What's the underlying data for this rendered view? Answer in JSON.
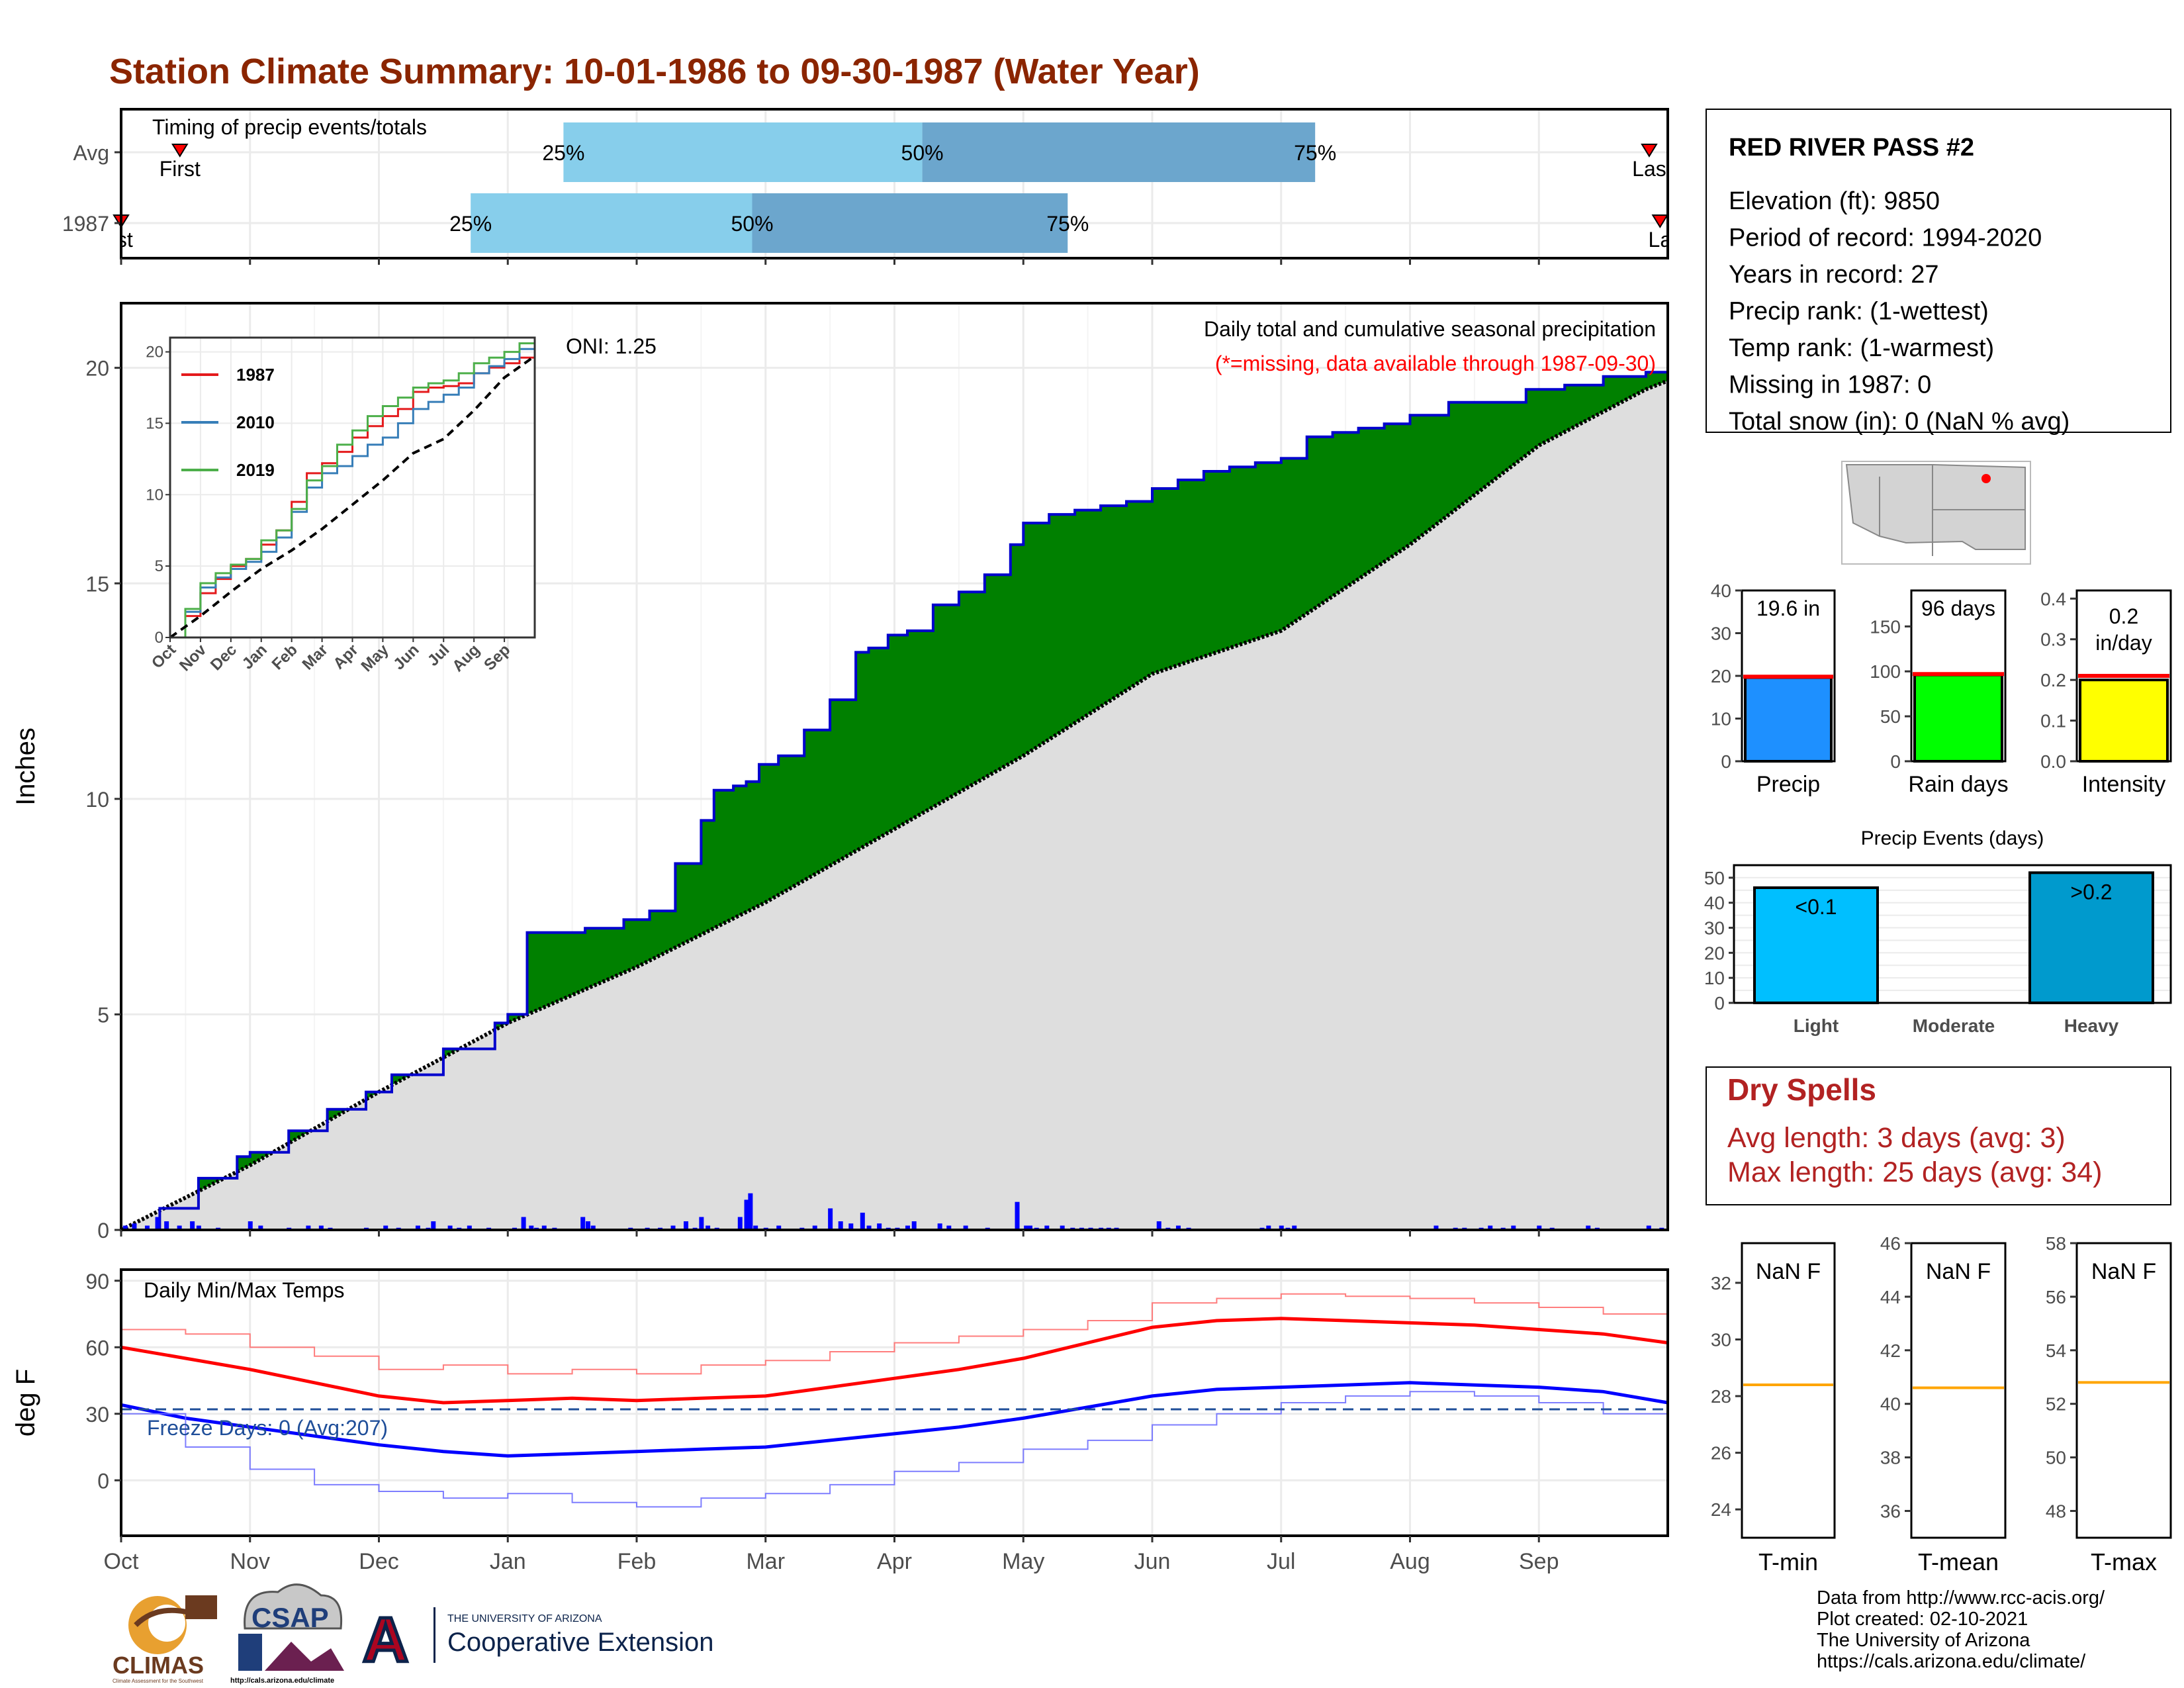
{
  "page": {
    "title": "Station Climate Summary: 10-01-1986 to 09-30-1987 (Water Year)",
    "month_labels": [
      "Oct",
      "Nov",
      "Dec",
      "Jan",
      "Feb",
      "Mar",
      "Apr",
      "May",
      "Jun",
      "Jul",
      "Aug",
      "Sep"
    ],
    "colors": {
      "title": "#8B2500",
      "precip_bar": "#0000FF",
      "green": "#008000",
      "avg_fill": "#DEDEDE",
      "q1": "#87CEEB",
      "q2": "#6CA6CD",
      "tmax": "#FF0000",
      "tmin": "#0000FF",
      "freeze": "#1F4E99",
      "dry": "#B22222",
      "mean_line": "#FFA500"
    }
  },
  "timing": {
    "label": "Timing of precip events/totals",
    "rows": [
      {
        "name": "Avg",
        "first_label": "First",
        "last_label": "Las",
        "p25": "25%",
        "p50": "50%",
        "p75": "75%",
        "first_frac": 0.038,
        "p25_frac": 0.286,
        "p50_frac": 0.518,
        "p75_frac": 0.772,
        "last_frac": 0.988
      },
      {
        "name": "1987",
        "first_label": "rst",
        "last_label": "La",
        "p25": "25%",
        "p50": "50%",
        "p75": "75%",
        "first_frac": 0.0,
        "p25_frac": 0.226,
        "p50_frac": 0.408,
        "p75_frac": 0.612,
        "last_frac": 0.995
      }
    ]
  },
  "chart_data": [
    {
      "type": "area",
      "title": "Daily total and cumulative seasonal precipitation",
      "subtitle": "(*=missing, data available through 1987-09-30)",
      "ylabel": "Inches",
      "ylim": [
        0,
        21.5
      ],
      "yticks": [
        0,
        5,
        10,
        15,
        20
      ],
      "annotation": "ONI: 1.25",
      "x_months": [
        "Oct",
        "Nov",
        "Dec",
        "Jan",
        "Feb",
        "Mar",
        "Apr",
        "May",
        "Jun",
        "Jul",
        "Aug",
        "Sep"
      ],
      "series": [
        {
          "name": "1987 cumulative",
          "x_month": [
            0,
            0.3,
            0.6,
            0.9,
            1.0,
            1.3,
            1.6,
            1.9,
            2.1,
            2.5,
            2.9,
            3.0,
            3.15,
            3.4,
            3.6,
            3.9,
            4.1,
            4.3,
            4.5,
            4.6,
            4.75,
            4.85,
            4.95,
            5.1,
            5.3,
            5.5,
            5.7,
            5.8,
            5.95,
            6.1,
            6.3,
            6.5,
            6.7,
            6.9,
            7.0,
            7.2,
            7.4,
            7.6,
            7.8,
            8.0,
            8.2,
            8.4,
            8.6,
            8.8,
            9.0,
            9.2,
            9.4,
            9.6,
            9.8,
            10.0,
            10.3,
            10.6,
            10.9,
            11.2,
            11.5,
            11.83,
            12.0
          ],
          "values": [
            0,
            0.5,
            1.2,
            1.7,
            1.8,
            2.3,
            2.8,
            3.2,
            3.6,
            4.2,
            4.8,
            5.0,
            6.9,
            6.9,
            7.0,
            7.2,
            7.4,
            8.5,
            9.5,
            10.2,
            10.3,
            10.4,
            10.8,
            11.0,
            11.6,
            12.3,
            13.4,
            13.5,
            13.8,
            13.9,
            14.5,
            14.8,
            15.2,
            15.9,
            16.4,
            16.6,
            16.7,
            16.8,
            16.9,
            17.2,
            17.4,
            17.6,
            17.7,
            17.8,
            17.9,
            18.4,
            18.5,
            18.6,
            18.7,
            18.9,
            19.2,
            19.2,
            19.5,
            19.6,
            19.8,
            19.9,
            19.95
          ]
        },
        {
          "name": "Average cumulative",
          "x_month": [
            0,
            1,
            2,
            3,
            4,
            5,
            6,
            7,
            8,
            9,
            10,
            11,
            11.83,
            12.0
          ],
          "values": [
            0,
            1.5,
            3.2,
            4.8,
            6.1,
            7.6,
            9.3,
            11.0,
            12.9,
            13.9,
            15.9,
            18.2,
            19.5,
            19.7
          ]
        },
        {
          "name": "Daily precip",
          "x_month": [
            0.03,
            0.1,
            0.2,
            0.28,
            0.35,
            0.45,
            0.55,
            0.6,
            0.75,
            1.0,
            1.08,
            1.3,
            1.45,
            1.55,
            1.62,
            1.9,
            2.05,
            2.15,
            2.3,
            2.38,
            2.42,
            2.55,
            2.62,
            2.7,
            2.85,
            3.05,
            3.12,
            3.18,
            3.22,
            3.28,
            3.36,
            3.58,
            3.62,
            3.66,
            3.95,
            4.08,
            4.18,
            4.28,
            4.38,
            4.45,
            4.5,
            4.55,
            4.62,
            4.8,
            4.85,
            4.88,
            4.92,
            5.0,
            5.1,
            5.28,
            5.38,
            5.5,
            5.58,
            5.66,
            5.75,
            5.8,
            5.88,
            5.95,
            6.02,
            6.1,
            6.15,
            6.35,
            6.42,
            6.55,
            6.72,
            6.95,
            7.02,
            7.05,
            7.1,
            7.18,
            7.3,
            7.38,
            7.45,
            7.52,
            7.6,
            7.66,
            7.72,
            8.05,
            8.12,
            8.2,
            8.28,
            8.85,
            8.9,
            9.0,
            9.05,
            9.1,
            10.2,
            10.35,
            10.42,
            10.55,
            10.62,
            10.72,
            10.8,
            11.0,
            11.1,
            11.38,
            11.45,
            11.85,
            11.95
          ],
          "values": [
            0.1,
            0.15,
            0.1,
            0.3,
            0.2,
            0.1,
            0.2,
            0.1,
            0.05,
            0.2,
            0.1,
            0.05,
            0.1,
            0.1,
            0.05,
            0.05,
            0.1,
            0.05,
            0.1,
            0.05,
            0.2,
            0.1,
            0.05,
            0.1,
            0.05,
            0.05,
            0.3,
            0.1,
            0.05,
            0.1,
            0.05,
            0.3,
            0.2,
            0.1,
            0.05,
            0.05,
            0.05,
            0.1,
            0.2,
            0.05,
            0.3,
            0.1,
            0.05,
            0.3,
            0.7,
            0.85,
            0.1,
            0.05,
            0.1,
            0.05,
            0.1,
            0.5,
            0.2,
            0.15,
            0.4,
            0.1,
            0.15,
            0.05,
            0.05,
            0.1,
            0.2,
            0.15,
            0.1,
            0.1,
            0.05,
            0.65,
            0.1,
            0.1,
            0.05,
            0.1,
            0.1,
            0.05,
            0.05,
            0.05,
            0.05,
            0.05,
            0.05,
            0.2,
            0.05,
            0.1,
            0.05,
            0.05,
            0.1,
            0.1,
            0.05,
            0.1,
            0.1,
            0.05,
            0.05,
            0.05,
            0.1,
            0.05,
            0.1,
            0.1,
            0.05,
            0.1,
            0.05,
            0.1,
            0.05
          ]
        }
      ]
    },
    {
      "type": "line",
      "title": "",
      "xlim_months": [
        0,
        12
      ],
      "ylim": [
        0,
        21
      ],
      "yticks": [
        0,
        5,
        10,
        15,
        20
      ],
      "x_tick_labels": [
        "Oct",
        "Nov",
        "Dec",
        "Jan",
        "Feb",
        "Mar",
        "Apr",
        "May",
        "Jun",
        "Jul",
        "Aug",
        "Sep"
      ],
      "series": [
        {
          "name": "1987",
          "color": "#E41A1C",
          "x_month": [
            0,
            0.5,
            1,
            1.5,
            2,
            2.5,
            3,
            3.5,
            4,
            4.5,
            5,
            5.5,
            6,
            6.5,
            7,
            7.5,
            8,
            8.5,
            9,
            9.5,
            10,
            10.5,
            11,
            11.5,
            12
          ],
          "values": [
            0,
            1.5,
            3.1,
            4.1,
            5.0,
            5.5,
            6.5,
            7.5,
            9.5,
            11.5,
            12.2,
            13.0,
            14.0,
            14.8,
            15.5,
            16.0,
            17.2,
            17.5,
            17.6,
            17.8,
            18.5,
            18.9,
            19.2,
            19.6,
            20.0
          ]
        },
        {
          "name": "2010",
          "color": "#377EB8",
          "x_month": [
            0,
            0.5,
            1,
            1.5,
            2,
            2.5,
            3,
            3.5,
            4,
            4.5,
            5,
            5.5,
            6,
            6.5,
            7,
            7.5,
            8,
            8.5,
            9,
            9.5,
            10,
            10.5,
            11,
            11.5,
            12
          ],
          "values": [
            0,
            1.8,
            3.5,
            4.2,
            4.8,
            5.3,
            6.0,
            7.0,
            8.8,
            10.5,
            11.5,
            12.0,
            12.7,
            13.5,
            14.0,
            15.0,
            16.0,
            16.5,
            17.0,
            17.5,
            18.5,
            19.0,
            19.5,
            20.2,
            20.8
          ]
        },
        {
          "name": "2019",
          "color": "#4DAF4A",
          "x_month": [
            0,
            0.5,
            1,
            1.5,
            2,
            2.5,
            3,
            3.5,
            4,
            4.5,
            5,
            5.5,
            6,
            6.5,
            7,
            7.5,
            8,
            8.5,
            9,
            9.5,
            10,
            10.5,
            11,
            11.5,
            12
          ],
          "values": [
            0,
            2.0,
            3.8,
            4.5,
            5.1,
            5.5,
            6.8,
            7.5,
            9.0,
            11.0,
            12.0,
            13.5,
            14.5,
            15.5,
            16.2,
            16.8,
            17.5,
            17.8,
            18.0,
            18.5,
            19.2,
            19.6,
            20.0,
            20.6,
            20.8
          ]
        },
        {
          "name": "Average",
          "color": "#000000",
          "x_month": [
            0,
            1,
            2,
            3,
            4,
            5,
            6,
            7,
            8,
            9,
            10,
            11,
            12
          ],
          "values": [
            0,
            1.5,
            3.2,
            4.8,
            6.1,
            7.6,
            9.3,
            11.0,
            12.9,
            13.9,
            15.9,
            18.2,
            19.7
          ]
        }
      ],
      "legend": [
        "1987",
        "2010",
        "2019"
      ],
      "legend_position": "top-left"
    },
    {
      "type": "line",
      "title": "Daily Min/Max Temps",
      "ylabel": "deg F",
      "ylim": [
        -25,
        95
      ],
      "yticks": [
        0,
        30,
        60,
        90
      ],
      "freeze_threshold": 32,
      "annotation": "Freeze Days: 0 (Avg:207)",
      "series": [
        {
          "name": "Avg max",
          "x_month": [
            0,
            0.5,
            1,
            1.5,
            2,
            2.5,
            3,
            3.5,
            4,
            4.5,
            5,
            5.5,
            6,
            6.5,
            7,
            7.5,
            8,
            8.5,
            9,
            9.5,
            10,
            10.5,
            11,
            11.5,
            12
          ],
          "values": [
            60,
            55,
            50,
            44,
            38,
            35,
            36,
            37,
            36,
            37,
            38,
            42,
            46,
            50,
            55,
            62,
            69,
            72,
            73,
            72,
            71,
            70,
            68,
            66,
            62
          ]
        },
        {
          "name": "Avg min",
          "x_month": [
            0,
            0.5,
            1,
            1.5,
            2,
            2.5,
            3,
            3.5,
            4,
            4.5,
            5,
            5.5,
            6,
            6.5,
            7,
            7.5,
            8,
            8.5,
            9,
            9.5,
            10,
            10.5,
            11,
            11.5,
            12
          ],
          "values": [
            34,
            28,
            24,
            20,
            16,
            13,
            11,
            12,
            13,
            14,
            15,
            18,
            21,
            24,
            28,
            33,
            38,
            41,
            42,
            43,
            44,
            43,
            42,
            40,
            35
          ]
        },
        {
          "name": "1987 max",
          "x_month": [
            0,
            0.5,
            1,
            1.5,
            2,
            2.5,
            3,
            3.5,
            4,
            4.5,
            5,
            5.5,
            6,
            6.5,
            7,
            7.5,
            8,
            8.5,
            9,
            9.5,
            10,
            10.5,
            11,
            11.5,
            12
          ],
          "values": [
            68,
            66,
            60,
            56,
            50,
            52,
            48,
            50,
            48,
            52,
            54,
            58,
            62,
            65,
            68,
            72,
            80,
            82,
            84,
            83,
            82,
            80,
            78,
            75,
            72
          ]
        },
        {
          "name": "1987 min",
          "x_month": [
            0,
            0.5,
            1,
            1.5,
            2,
            2.5,
            3,
            3.5,
            4,
            4.5,
            5,
            5.5,
            6,
            6.5,
            7,
            7.5,
            8,
            8.5,
            9,
            9.5,
            10,
            10.5,
            11,
            11.5,
            12
          ],
          "values": [
            30,
            15,
            5,
            -2,
            -5,
            -8,
            -6,
            -10,
            -12,
            -8,
            -6,
            -2,
            4,
            8,
            14,
            18,
            25,
            30,
            35,
            38,
            40,
            38,
            35,
            30,
            22
          ]
        }
      ]
    },
    {
      "type": "bar",
      "panel": "summary",
      "categories": [
        "Precip",
        "Rain days",
        "Intensity"
      ],
      "values": [
        19.6,
        96,
        0.2
      ],
      "averages": [
        19.8,
        97,
        0.21
      ],
      "value_labels": [
        "19.6 in",
        "96 days",
        "0.2\nin/day"
      ],
      "ylims": [
        [
          0,
          40
        ],
        [
          0,
          190
        ],
        [
          0,
          0.42
        ]
      ],
      "yticks": [
        [
          0,
          10,
          20,
          30,
          40
        ],
        [
          0,
          50,
          100,
          150
        ],
        [
          0.0,
          0.1,
          0.2,
          0.3,
          0.4
        ]
      ],
      "ytick_labels": [
        [
          "0",
          "10",
          "20",
          "30",
          "40"
        ],
        [
          "0",
          "50",
          "100",
          "150"
        ],
        [
          "0.0",
          "0.1",
          "0.2",
          "0.3",
          "0.4"
        ]
      ],
      "colors": [
        "#1E90FF",
        "#00FF00",
        "#FFFF00"
      ]
    },
    {
      "type": "bar",
      "title": "Precip Events (days)",
      "categories": [
        "Light",
        "Moderate",
        "Heavy"
      ],
      "values": [
        46,
        0,
        52
      ],
      "value_labels": [
        "<0.1",
        "",
        ">0.2"
      ],
      "ylim": [
        0,
        55
      ],
      "yticks": [
        0,
        5,
        10,
        15,
        20,
        25,
        30,
        35,
        40,
        45,
        50
      ],
      "colors": [
        "#00BFFF",
        "#1874CD",
        "#009ACD"
      ]
    },
    {
      "type": "bar",
      "panel": "temps",
      "categories": [
        "T-min",
        "T-mean",
        "T-max"
      ],
      "value_labels": [
        "NaN F",
        "NaN F",
        "NaN F"
      ],
      "averages": [
        28.4,
        40.6,
        52.8
      ],
      "ylims": [
        [
          23,
          33.4
        ],
        [
          35,
          46
        ],
        [
          47,
          58
        ]
      ],
      "yticks": [
        [
          24,
          26,
          28,
          30,
          32
        ],
        [
          36,
          38,
          40,
          42,
          44,
          46
        ],
        [
          48,
          50,
          52,
          54,
          56,
          58
        ]
      ]
    }
  ],
  "station": {
    "name": "RED RIVER PASS #2",
    "lines": [
      "Elevation (ft): 9850",
      "Period of record: 1994-2020",
      "Years in record: 27",
      "Precip rank:  (1-wettest)",
      "Temp rank:  (1-warmest)",
      "Missing in 1987: 0",
      "Total snow (in): 0 (NaN % avg)"
    ]
  },
  "dry_spells": {
    "title": "Dry Spells",
    "avg": "Avg length: 3 days (avg: 3)",
    "max": "Max length: 25 days (avg: 34)"
  },
  "footer": {
    "credits": [
      "Data from http://www.rcc-acis.org/",
      "Plot created: 02-10-2021",
      "The University of Arizona",
      "https://cals.arizona.edu/climate/"
    ],
    "logo_climas": "CLIMAS",
    "logo_climas_sub": "Climate Assessment for the Southwest",
    "logo_csap": "CSAP",
    "logo_csap_url": "http://cals.arizona.edu/climate",
    "logo_ua_letter": "A",
    "logo_ua_top": "THE UNIVERSITY OF ARIZONA",
    "logo_ua_bottom": "Cooperative Extension"
  }
}
